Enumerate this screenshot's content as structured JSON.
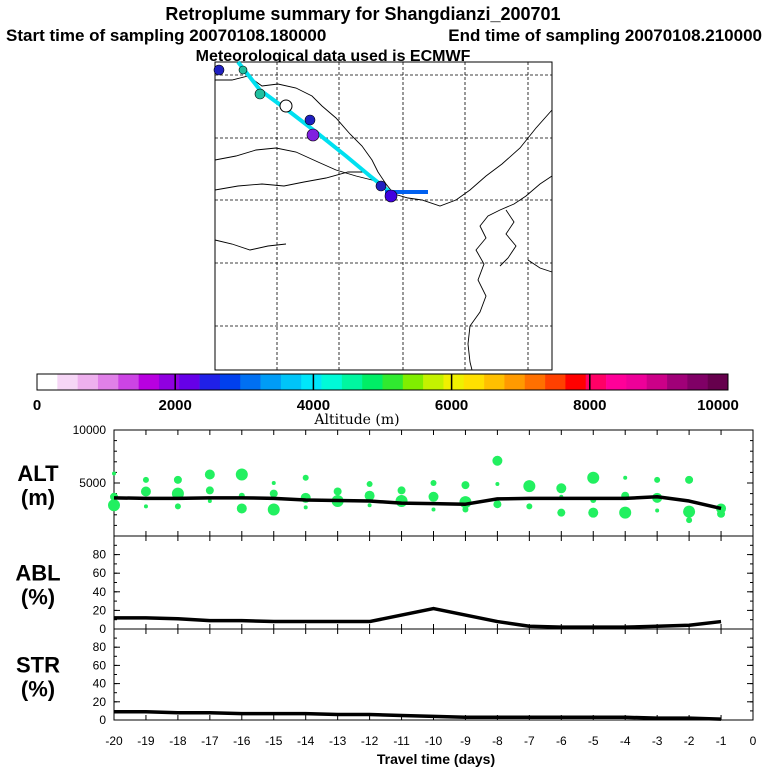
{
  "title": {
    "line1": "Retroplume summary for Shangdianzi_200701",
    "line2_left": "Start time of sampling 20070108.180000",
    "line2_right": "End time of sampling 20070108.210000",
    "line3": "Meteorological data used is ECMWF"
  },
  "colorbar": {
    "label": "Altitude (m)",
    "tick_labels": [
      "0",
      "2000",
      "4000",
      "6000",
      "8000",
      "10000"
    ],
    "colors": [
      "#ffffff",
      "#f6d6f6",
      "#eeb0ee",
      "#e080e8",
      "#cc44e4",
      "#b800e0",
      "#9000e0",
      "#6600e8",
      "#2020e8",
      "#0040ee",
      "#0070f2",
      "#009cf6",
      "#00c4f8",
      "#00e6fa",
      "#00fad8",
      "#00f6a0",
      "#00ee66",
      "#30ea30",
      "#80ee00",
      "#c4f200",
      "#f0f000",
      "#ffe000",
      "#ffc000",
      "#ff9a00",
      "#ff7000",
      "#ff4000",
      "#ff0000",
      "#ff0066",
      "#ff0099",
      "#ee0099",
      "#cc0088",
      "#a00078",
      "#800066",
      "#66004d"
    ]
  },
  "chart_data": [
    {
      "type": "line",
      "panel": "ALT",
      "ylabel": "ALT (m)",
      "ylim": [
        0,
        10000
      ],
      "yticks": [
        "10000",
        "5000"
      ],
      "xlim": [
        -20,
        0
      ],
      "x": [
        -20,
        -19,
        -18,
        -17,
        -16,
        -15,
        -14,
        -13,
        -12,
        -11,
        -10,
        -9,
        -8,
        -7,
        -6,
        -5,
        -4,
        -3,
        -2,
        -1
      ],
      "values": [
        3600,
        3550,
        3550,
        3600,
        3600,
        3550,
        3400,
        3350,
        3300,
        3100,
        3050,
        3000,
        3500,
        3550,
        3550,
        3550,
        3550,
        3700,
        3300,
        2600
      ],
      "scatter": {
        "name": "plume clusters",
        "color": "#22f060",
        "x": [
          -20,
          -20,
          -20,
          -19,
          -19,
          -19,
          -18,
          -18,
          -18,
          -17,
          -17,
          -17,
          -16,
          -16,
          -16,
          -15,
          -15,
          -15,
          -14,
          -14,
          -14,
          -13,
          -13,
          -12,
          -12,
          -12,
          -11,
          -11,
          -10,
          -10,
          -10,
          -9,
          -9,
          -9,
          -8,
          -8,
          -8,
          -7,
          -7,
          -6,
          -6,
          -6,
          -5,
          -5,
          -5,
          -4,
          -4,
          -4,
          -3,
          -3,
          -3,
          -2,
          -2,
          -2,
          -1,
          -1,
          -1
        ],
        "y": [
          5900,
          3700,
          2900,
          5300,
          4200,
          2800,
          5300,
          4000,
          2800,
          5800,
          3300,
          4300,
          5800,
          3800,
          2600,
          5000,
          4000,
          2500,
          5500,
          3600,
          2700,
          4200,
          3300,
          4900,
          3800,
          2900,
          4300,
          3300,
          5000,
          3700,
          2500,
          4800,
          3200,
          2500,
          7100,
          4900,
          3000,
          4700,
          2800,
          4500,
          3700,
          2200,
          5500,
          3400,
          2200,
          5500,
          3800,
          2200,
          5300,
          3600,
          2400,
          5300,
          2300,
          1500,
          2600,
          2800,
          2100
        ]
      }
    },
    {
      "type": "line",
      "panel": "ABL",
      "ylabel": "ABL (%)",
      "ylim": [
        0,
        100
      ],
      "yticks": [
        "80",
        "60",
        "40",
        "20",
        "0"
      ],
      "xlim": [
        -20,
        0
      ],
      "x": [
        -20,
        -19,
        -18,
        -17,
        -16,
        -15,
        -14,
        -13,
        -12,
        -11,
        -10,
        -9,
        -8,
        -7,
        -6,
        -5,
        -4,
        -3,
        -2,
        -1
      ],
      "values": [
        12,
        12,
        11,
        9,
        9,
        8,
        8,
        8,
        8,
        15,
        22,
        15,
        8,
        3,
        2,
        2,
        2,
        3,
        4,
        8
      ]
    },
    {
      "type": "line",
      "panel": "STR",
      "ylabel": "STR (%)",
      "ylim": [
        0,
        100
      ],
      "yticks": [
        "80",
        "60",
        "40",
        "20",
        "0"
      ],
      "xlim": [
        -20,
        0
      ],
      "xlabel": "Travel time (days)",
      "xtick_labels": [
        "-20",
        "-19",
        "-18",
        "-17",
        "-16",
        "-15",
        "-14",
        "-13",
        "-12",
        "-11",
        "-10",
        "-9",
        "-8",
        "-7",
        "-6",
        "-5",
        "-4",
        "-3",
        "-2",
        "-1",
        "0"
      ],
      "x": [
        -20,
        -19,
        -18,
        -17,
        -16,
        -15,
        -14,
        -13,
        -12,
        -11,
        -10,
        -9,
        -8,
        -7,
        -6,
        -5,
        -4,
        -3,
        -2,
        -1
      ],
      "values": [
        9,
        9,
        8,
        8,
        7,
        7,
        7,
        6,
        6,
        5,
        4,
        3,
        3,
        3,
        3,
        3,
        3,
        2,
        2,
        1
      ]
    }
  ],
  "map": {
    "trajectory_colors": [
      "#00e0f0",
      "#0060f0"
    ],
    "cluster_colors": [
      "#4000e0",
      "#2020c0",
      "#8020e0",
      "#20c0a0"
    ]
  }
}
